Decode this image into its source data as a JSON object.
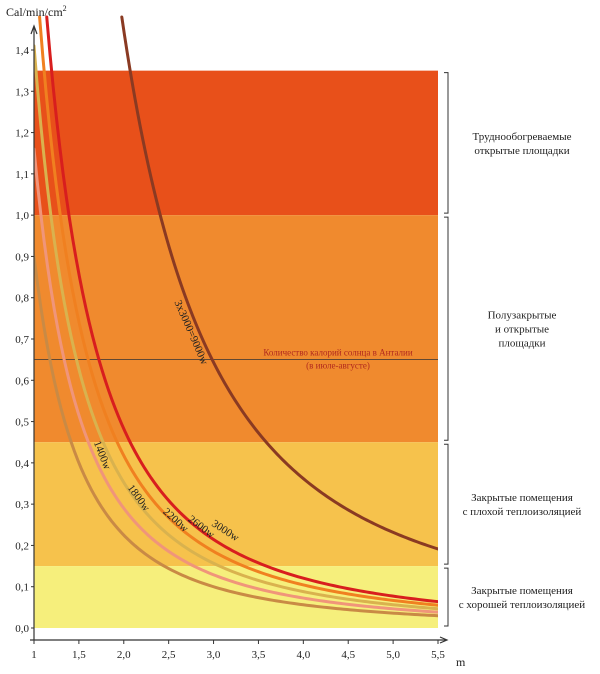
{
  "chart_data": {
    "type": "line",
    "ylabel": "Cal/min/cm",
    "ylabel_sup": "2",
    "xlabel": "m",
    "xlim": [
      1.0,
      5.5
    ],
    "ylim": [
      0.0,
      1.45
    ],
    "x_ticks": [
      "1",
      "1,5",
      "2,0",
      "2,5",
      "3,0",
      "3,5",
      "4,0",
      "4,5",
      "5,0",
      "5,5"
    ],
    "x_tick_values": [
      1.0,
      1.5,
      2.0,
      2.5,
      3.0,
      3.5,
      4.0,
      4.5,
      5.0,
      5.5
    ],
    "y_ticks": [
      "0,0",
      "0,1",
      "0,2",
      "0,3",
      "0,4",
      "0,5",
      "0,6",
      "0,7",
      "0,8",
      "0,9",
      "1,0",
      "1,1",
      "1,2",
      "1,3",
      "1,4"
    ],
    "y_tick_values": [
      0.0,
      0.1,
      0.2,
      0.3,
      0.4,
      0.5,
      0.6,
      0.7,
      0.8,
      0.9,
      1.0,
      1.1,
      1.2,
      1.3,
      1.4
    ],
    "zones": [
      {
        "from": 1.0,
        "to": 1.35,
        "color": "#e8501a",
        "label": [
          "Труднообогреваемые",
          "открытые площадки"
        ]
      },
      {
        "from": 0.45,
        "to": 1.0,
        "color": "#f08a2e",
        "label": [
          "Полузакрытые",
          "и открытые",
          "площадки"
        ]
      },
      {
        "from": 0.15,
        "to": 0.45,
        "color": "#f6c24c",
        "label": [
          "Закрытые помещения",
          "с плохой теплоизоляцией"
        ]
      },
      {
        "from": 0.0,
        "to": 0.15,
        "color": "#f6ef7c",
        "label": [
          "Закрытые помещения",
          "с хорошей теплоизоляцией"
        ]
      }
    ],
    "reference_line": {
      "y": 0.65,
      "label": [
        "Количество калорий солнца в Анталии",
        "(в июле-августе)"
      ]
    },
    "series": [
      {
        "name": "1400w",
        "color": "#c98a45",
        "k": 0.9,
        "x": [
          1.42,
          1.6,
          1.8,
          2.0,
          2.5,
          3.0,
          3.5,
          4.0,
          4.5,
          5.0,
          5.5
        ],
        "y": [
          0.45,
          0.35,
          0.28,
          0.225,
          0.144,
          0.1,
          0.073,
          0.056,
          0.044,
          0.036,
          0.03
        ]
      },
      {
        "name": "1800w",
        "color": "#f0957a",
        "k": 1.16,
        "x": [
          1.27,
          1.5,
          2.0,
          2.5,
          3.0,
          3.5,
          4.0,
          4.5,
          5.0,
          5.5
        ],
        "y": [
          0.72,
          0.52,
          0.29,
          0.186,
          0.129,
          0.095,
          0.073,
          0.057,
          0.046,
          0.038
        ]
      },
      {
        "name": "2200w",
        "color": "#d9b24e",
        "k": 1.41,
        "x": [
          1.0,
          1.2,
          1.5,
          2.0,
          2.5,
          3.0,
          3.5,
          4.0,
          4.5,
          5.0,
          5.5
        ],
        "y": [
          1.41,
          0.98,
          0.63,
          0.35,
          0.226,
          0.157,
          0.115,
          0.088,
          0.07,
          0.056,
          0.047
        ]
      },
      {
        "name": "2600w",
        "color": "#f08020",
        "k": 1.67,
        "x": [
          1.09,
          1.2,
          1.5,
          2.0,
          2.5,
          3.0,
          3.5,
          4.0,
          4.5,
          5.0,
          5.5
        ],
        "y": [
          1.41,
          1.16,
          0.74,
          0.42,
          0.267,
          0.186,
          0.136,
          0.104,
          0.082,
          0.067,
          0.055
        ]
      },
      {
        "name": "3000w",
        "color": "#d81e1e",
        "k": 1.93,
        "x": [
          1.17,
          1.3,
          1.5,
          2.0,
          2.5,
          3.0,
          3.5,
          4.0,
          4.5,
          5.0,
          5.5
        ],
        "y": [
          1.41,
          1.14,
          0.86,
          0.48,
          0.309,
          0.214,
          0.158,
          0.121,
          0.095,
          0.077,
          0.064
        ]
      },
      {
        "name": "3x3000=9000w",
        "color": "#8a3a22",
        "k": 5.79,
        "x": [
          2.03,
          2.2,
          2.5,
          3.0,
          3.5,
          4.0,
          4.5,
          5.0,
          5.5
        ],
        "y": [
          1.41,
          1.2,
          0.93,
          0.64,
          0.47,
          0.36,
          0.286,
          0.232,
          0.191
        ]
      }
    ],
    "legend": "inline-labels",
    "grid": false
  }
}
